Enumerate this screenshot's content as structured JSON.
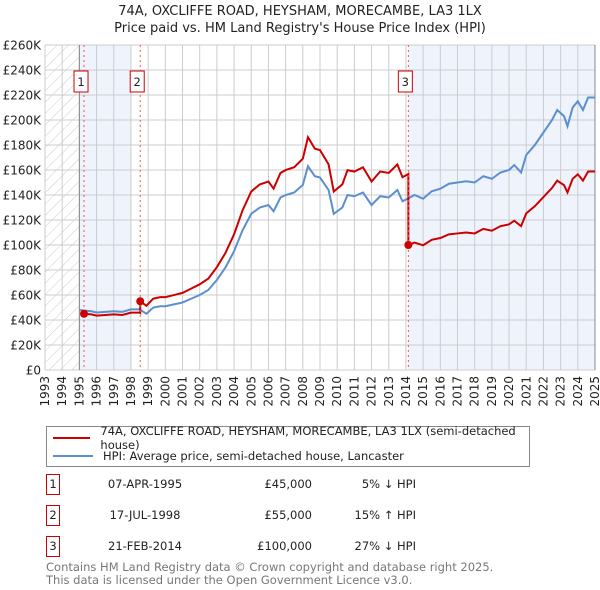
{
  "title": "74A, OXCLIFFE ROAD, HEYSHAM, MORECAMBE, LA3 1LX",
  "subtitle": "Price paid vs. HM Land Registry's House Price Index (HPI)",
  "colors": {
    "property": "#cc0000",
    "hpi": "#5b8fd0",
    "shade": "#eef3fc",
    "grid": "#cccccc"
  },
  "chart_data": {
    "type": "line",
    "xlim": [
      1993,
      2025
    ],
    "ylim": [
      0,
      260000
    ],
    "x_ticks": [
      "1993",
      "1994",
      "1995",
      "1996",
      "1997",
      "1998",
      "1999",
      "2000",
      "2001",
      "2002",
      "2003",
      "2004",
      "2005",
      "2006",
      "2007",
      "2008",
      "2009",
      "2010",
      "2011",
      "2012",
      "2013",
      "2014",
      "2015",
      "2016",
      "2017",
      "2018",
      "2019",
      "2020",
      "2021",
      "2022",
      "2023",
      "2024",
      "2025"
    ],
    "y_ticks": [
      "£0",
      "£20K",
      "£40K",
      "£60K",
      "£80K",
      "£100K",
      "£120K",
      "£140K",
      "£160K",
      "£180K",
      "£200K",
      "£220K",
      "£240K",
      "£260K"
    ],
    "hpi_series": {
      "name": "HPI: Average price, semi-detached house, Lancaster",
      "x": [
        1995.0,
        1995.3,
        1995.7,
        1996.0,
        1996.5,
        1997.0,
        1997.5,
        1998.0,
        1998.5,
        1998.9,
        1999.3,
        1999.7,
        2000.0,
        2000.5,
        2001.0,
        2001.5,
        2002.0,
        2002.5,
        2003.0,
        2003.5,
        2004.0,
        2004.5,
        2005.0,
        2005.5,
        2006.0,
        2006.3,
        2006.7,
        2007.0,
        2007.5,
        2008.0,
        2008.3,
        2008.7,
        2009.0,
        2009.5,
        2009.8,
        2010.3,
        2010.6,
        2011.0,
        2011.5,
        2012.0,
        2012.5,
        2013.0,
        2013.5,
        2013.8,
        2014.1,
        2014.5,
        2015.0,
        2015.5,
        2016.0,
        2016.5,
        2017.0,
        2017.5,
        2018.0,
        2018.5,
        2019.0,
        2019.5,
        2020.0,
        2020.3,
        2020.7,
        2021.0,
        2021.5,
        2022.0,
        2022.5,
        2022.8,
        2023.2,
        2023.4,
        2023.7,
        2024.0,
        2024.3,
        2024.6,
        2025.0
      ],
      "y": [
        48000,
        47500,
        47000,
        46000,
        46500,
        47000,
        46500,
        48500,
        48500,
        45000,
        50000,
        51000,
        51000,
        52500,
        54000,
        57000,
        60000,
        64000,
        72000,
        82000,
        95000,
        112000,
        125000,
        130000,
        132000,
        127000,
        138000,
        140000,
        142000,
        148000,
        163000,
        155000,
        154000,
        144000,
        125000,
        130000,
        140000,
        139000,
        142000,
        132000,
        139000,
        138000,
        144000,
        135000,
        137000,
        140000,
        137000,
        143000,
        145000,
        149000,
        150000,
        151000,
        150000,
        155000,
        153000,
        158000,
        160000,
        164000,
        158000,
        172000,
        180000,
        190000,
        200000,
        208000,
        203000,
        195000,
        210000,
        215000,
        208000,
        218000,
        218000
      ]
    },
    "property_series": {
      "name": "74A, OXCLIFFE ROAD, HEYSHAM, MORECAMBE, LA3 1LX (semi-detached house)"
    },
    "sales": [
      {
        "label": "1",
        "x": 1995.27,
        "price": 45000,
        "date": "07-APR-1995",
        "price_text": "£45,000",
        "hpi_text": "5% ↓ HPI"
      },
      {
        "label": "2",
        "x": 1998.54,
        "price": 55000,
        "date": "17-JUL-1998",
        "price_text": "£55,000",
        "hpi_text": "15% ↑ HPI"
      },
      {
        "label": "3",
        "x": 2014.14,
        "price": 100000,
        "date": "21-FEB-2014",
        "price_text": "£100,000",
        "hpi_text": "27% ↓ HPI"
      }
    ],
    "hatched_until": 1995,
    "shaded_ranges": [
      [
        1995,
        1998.0
      ],
      [
        2014.14,
        2025
      ]
    ],
    "legend_position": "below"
  },
  "legend": {
    "property": "74A, OXCLIFFE ROAD, HEYSHAM, MORECAMBE, LA3 1LX (semi-detached house)",
    "hpi": "HPI: Average price, semi-detached house, Lancaster"
  },
  "footer": {
    "line1": "Contains HM Land Registry data © Crown copyright and database right 2025.",
    "line2": "This data is licensed under the Open Government Licence v3.0."
  }
}
